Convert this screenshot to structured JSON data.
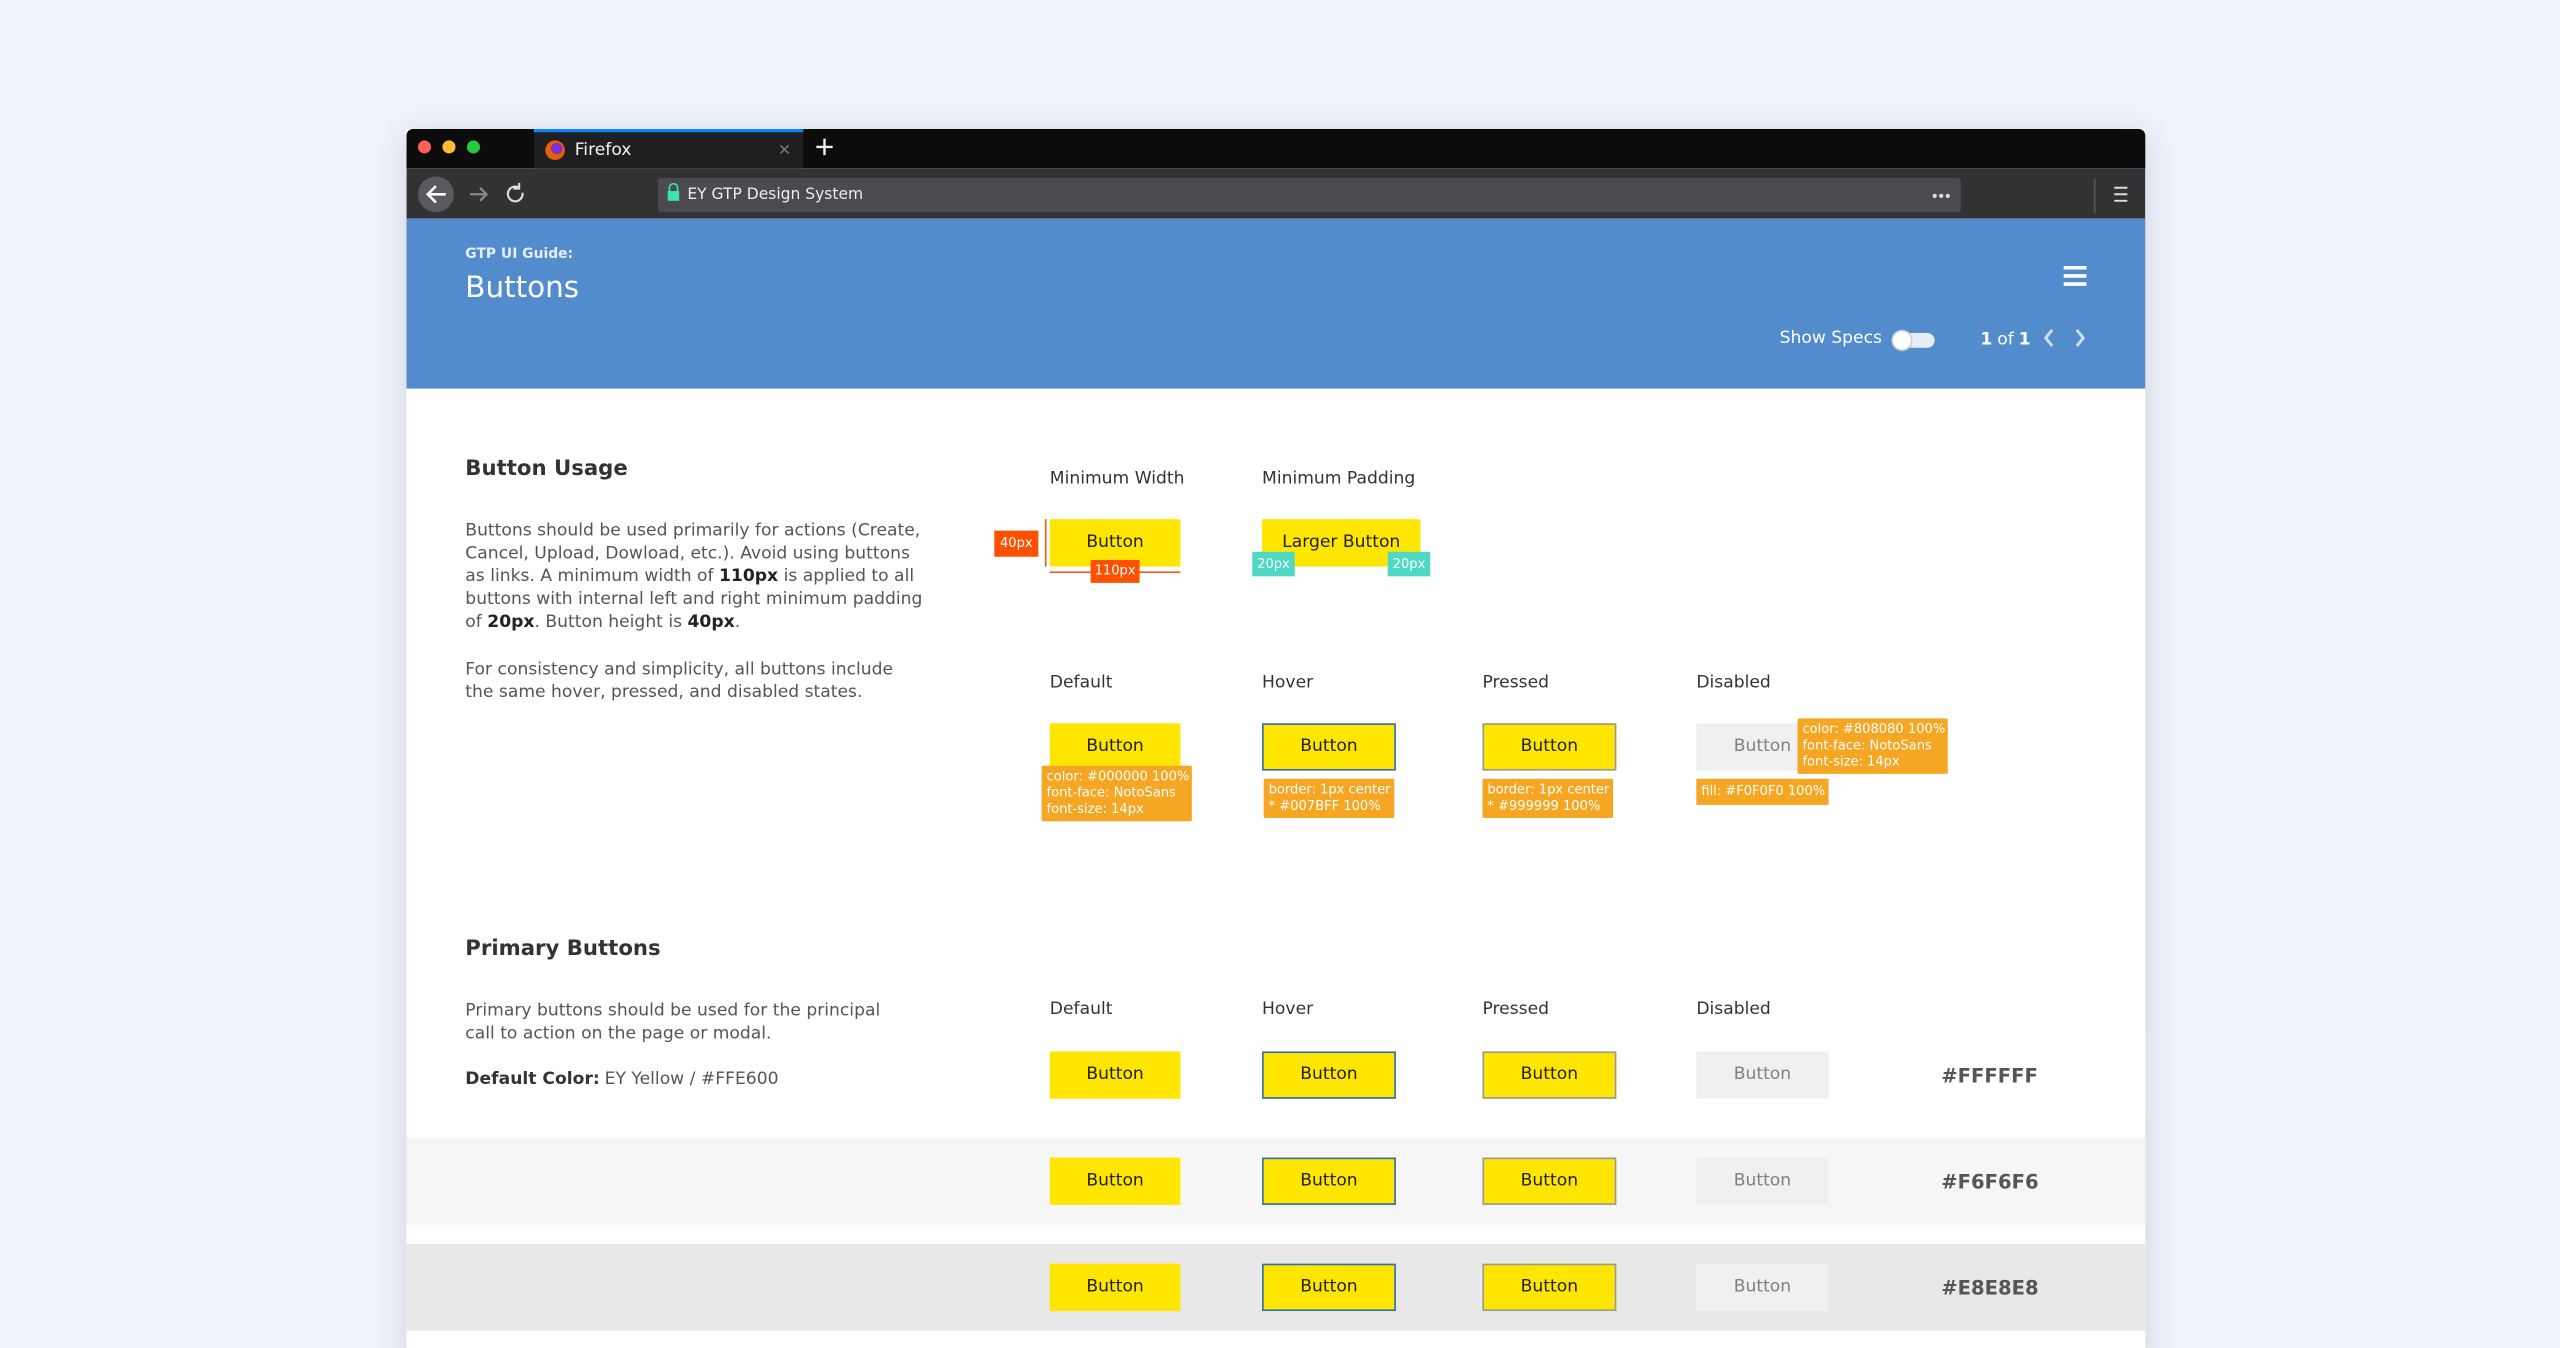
{
  "browser": {
    "tab_title": "Firefox",
    "url": "EY GTP Design System"
  },
  "header": {
    "eyebrow": "GTP UI Guide:",
    "title": "Buttons",
    "show_specs": "Show Specs",
    "pager": {
      "current": "1",
      "of": "of",
      "total": "1"
    }
  },
  "usage": {
    "title": "Button Usage",
    "paragraph1": [
      "Buttons should be used primarily for actions (Create, Cancel, Upload, Dowload, etc.). Avoid using buttons as links. A minimum width of ",
      "110px",
      " is applied to all buttons with internal left and right minimum padding of ",
      "20px",
      ". Button height is ",
      "40px",
      "."
    ],
    "paragraph2": "For consistency and simplicity, all buttons include the same hover, pressed, and disabled states.",
    "min_width": {
      "label": "Minimum Width",
      "button": "Button",
      "height_tag": "40px",
      "width_tag": "110px"
    },
    "min_padding": {
      "label": "Minimum Padding",
      "button": "Larger Button",
      "left_tag": "20px",
      "right_tag": "20px"
    },
    "states": [
      {
        "label": "Default",
        "button": "Button",
        "note": [
          "color: #000000 100%",
          "font-face: NotoSans",
          "font-size: 14px"
        ]
      },
      {
        "label": "Hover",
        "button": "Button",
        "note": [
          "border: 1px center",
          "* #007BFF 100%"
        ]
      },
      {
        "label": "Pressed",
        "button": "Button",
        "note": [
          "border: 1px center",
          "* #999999 100%"
        ]
      },
      {
        "label": "Disabled",
        "button": "Button",
        "note": [
          "color: #808080 100%",
          "font-face: NotoSans",
          "font-size: 14px"
        ],
        "fill_note": "fill: #F0F0F0 100%"
      }
    ]
  },
  "primary": {
    "title": "Primary Buttons",
    "description": "Primary buttons should be used for the principal call to action on the page or modal.",
    "default_color_label": "Default Color:",
    "default_color_value": "EY Yellow / #FFE600",
    "state_labels": [
      "Default",
      "Hover",
      "Pressed",
      "Disabled"
    ],
    "rows": [
      {
        "background": "#FFFFFF",
        "buttons": [
          "Button",
          "Button",
          "Button",
          "Button"
        ]
      },
      {
        "background": "#F6F6F6",
        "buttons": [
          "Button",
          "Button",
          "Button",
          "Button"
        ]
      },
      {
        "background": "#E8E8E8",
        "buttons": [
          "Button",
          "Button",
          "Button",
          "Button"
        ]
      }
    ]
  }
}
